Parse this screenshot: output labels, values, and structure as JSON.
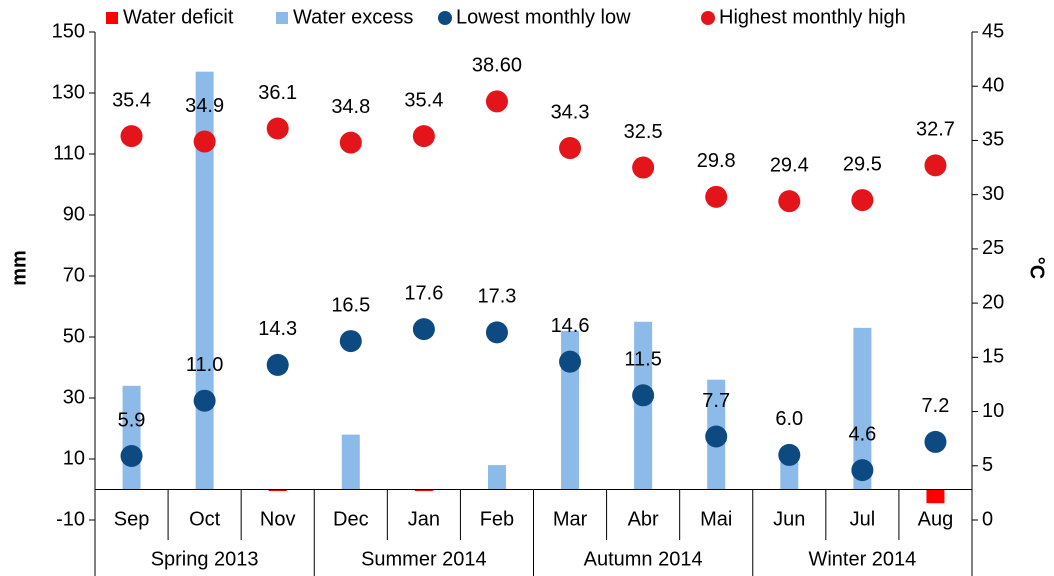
{
  "chart_data": {
    "type": "bar-scatter",
    "categories": [
      "Sep",
      "Oct",
      "Nov",
      "Dec",
      "Jan",
      "Feb",
      "Mar",
      "Abr",
      "Mai",
      "Jun",
      "Jul",
      "Aug"
    ],
    "category_groups": [
      "Spring 2013",
      "Summer 2014",
      "Autumn 2014",
      "Winter 2014"
    ],
    "y_label": "mm",
    "y2_label": "°C",
    "ylim": [
      -10,
      150
    ],
    "yticks": [
      -10,
      10,
      30,
      50,
      70,
      90,
      110,
      130,
      150
    ],
    "y2lim": [
      0,
      45
    ],
    "y2ticks": [
      0,
      5,
      10,
      15,
      20,
      25,
      30,
      35,
      40,
      45
    ],
    "series": [
      {
        "name": "Water deficit",
        "kind": "bar",
        "color": "#ff0000",
        "values": [
          0,
          0,
          -0.5,
          0,
          -0.5,
          0,
          0,
          0,
          0,
          0,
          0,
          -4.5
        ]
      },
      {
        "name": "Water excess",
        "kind": "bar",
        "color": "#8dbbe9",
        "values": [
          34,
          137,
          0,
          18,
          0,
          8,
          52,
          55,
          36,
          9,
          53,
          0
        ]
      },
      {
        "name": "Lowest monthly low",
        "kind": "scatter",
        "axis": "y2",
        "color": "#0d4a82",
        "values": [
          5.9,
          11.0,
          14.3,
          16.5,
          17.6,
          17.3,
          14.6,
          11.5,
          7.7,
          6.0,
          4.6,
          7.2
        ],
        "value_labels": [
          "5.9",
          "11.0",
          "14.3",
          "16.5",
          "17.6",
          "17.3",
          "14.6",
          "11.5",
          "7.7",
          "6.0",
          "4.6",
          "7.2"
        ]
      },
      {
        "name": "Highest monthly high",
        "kind": "scatter",
        "axis": "y2",
        "color": "#e3151b",
        "values": [
          35.4,
          34.9,
          36.1,
          34.8,
          35.4,
          38.6,
          34.3,
          32.5,
          29.8,
          29.4,
          29.5,
          32.7
        ],
        "value_labels": [
          "35.4",
          "34.9",
          "36.1",
          "34.8",
          "35.4",
          "38.60",
          "34.3",
          "32.5",
          "29.8",
          "29.4",
          "29.5",
          "32.7"
        ]
      }
    ]
  }
}
